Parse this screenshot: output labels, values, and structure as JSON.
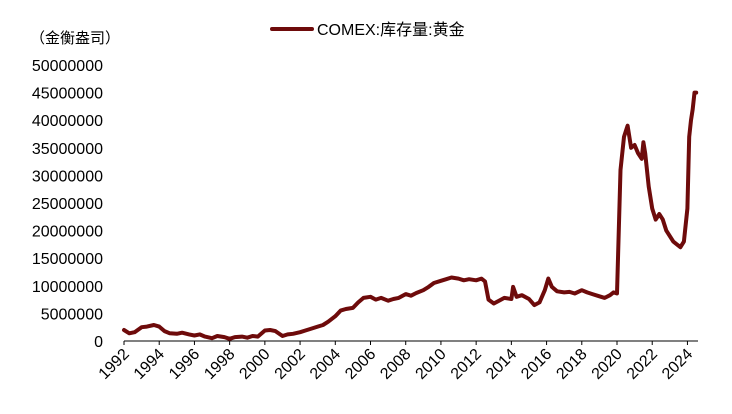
{
  "chart_data": {
    "type": "line",
    "title": "",
    "xlabel": "",
    "ylabel": "（金衡盎司）",
    "xlim": [
      1992,
      2024.6
    ],
    "ylim": [
      0,
      50000000
    ],
    "grid": false,
    "legend_position": "top",
    "y_ticks": [
      "0",
      "5000000",
      "10000000",
      "15000000",
      "20000000",
      "25000000",
      "30000000",
      "35000000",
      "40000000",
      "45000000",
      "50000000"
    ],
    "x_ticks": [
      "1992",
      "1994",
      "1996",
      "1998",
      "2000",
      "2002",
      "2004",
      "2006",
      "2008",
      "2010",
      "2012",
      "2014",
      "2016",
      "2018",
      "2020",
      "2022",
      "2024"
    ],
    "series": [
      {
        "name": "COMEX:库存量:黄金",
        "color": "#6e0b0b",
        "x": [
          1992.0,
          1992.3,
          1992.6,
          1993.0,
          1993.3,
          1993.7,
          1994.0,
          1994.3,
          1994.6,
          1995.0,
          1995.3,
          1995.7,
          1996.0,
          1996.3,
          1996.6,
          1997.0,
          1997.3,
          1997.7,
          1998.0,
          1998.3,
          1998.7,
          1999.0,
          1999.3,
          1999.6,
          2000.0,
          2000.3,
          2000.6,
          2001.0,
          2001.3,
          2001.6,
          2002.0,
          2002.3,
          2002.6,
          2003.0,
          2003.3,
          2003.6,
          2004.0,
          2004.3,
          2004.6,
          2005.0,
          2005.3,
          2005.6,
          2006.0,
          2006.3,
          2006.6,
          2007.0,
          2007.3,
          2007.6,
          2008.0,
          2008.3,
          2008.6,
          2009.0,
          2009.3,
          2009.6,
          2010.0,
          2010.3,
          2010.6,
          2011.0,
          2011.3,
          2011.6,
          2012.0,
          2012.3,
          2012.5,
          2012.7,
          2013.0,
          2013.3,
          2013.6,
          2014.0,
          2014.1,
          2014.3,
          2014.6,
          2015.0,
          2015.3,
          2015.6,
          2015.9,
          2016.1,
          2016.3,
          2016.6,
          2017.0,
          2017.3,
          2017.6,
          2018.0,
          2018.3,
          2018.6,
          2019.0,
          2019.3,
          2019.6,
          2019.8,
          2020.0,
          2020.2,
          2020.4,
          2020.5,
          2020.6,
          2020.8,
          2021.0,
          2021.2,
          2021.4,
          2021.5,
          2021.6,
          2021.8,
          2022.0,
          2022.2,
          2022.4,
          2022.6,
          2022.8,
          2023.0,
          2023.2,
          2023.4,
          2023.6,
          2023.8,
          2024.0,
          2024.1,
          2024.2,
          2024.3,
          2024.4,
          2024.5
        ],
        "y": [
          2000000,
          1400000,
          1600000,
          2500000,
          2600000,
          2900000,
          2600000,
          1800000,
          1400000,
          1300000,
          1500000,
          1200000,
          1000000,
          1200000,
          800000,
          500000,
          900000,
          700000,
          400000,
          700000,
          800000,
          600000,
          900000,
          800000,
          1900000,
          2000000,
          1800000,
          900000,
          1200000,
          1300000,
          1600000,
          1900000,
          2200000,
          2600000,
          2900000,
          3500000,
          4500000,
          5500000,
          5800000,
          6000000,
          7000000,
          7800000,
          8000000,
          7500000,
          7800000,
          7300000,
          7600000,
          7800000,
          8500000,
          8200000,
          8700000,
          9200000,
          9800000,
          10500000,
          10900000,
          11200000,
          11500000,
          11300000,
          11000000,
          11200000,
          11000000,
          11300000,
          10800000,
          7500000,
          6800000,
          7300000,
          7800000,
          7600000,
          9800000,
          8000000,
          8300000,
          7600000,
          6500000,
          7000000,
          9200000,
          11300000,
          9800000,
          9000000,
          8800000,
          8900000,
          8600000,
          9200000,
          8800000,
          8500000,
          8100000,
          7800000,
          8300000,
          8800000,
          8600000,
          31000000,
          37000000,
          38000000,
          39000000,
          35000000,
          35500000,
          34000000,
          33000000,
          36000000,
          34000000,
          28000000,
          24000000,
          22000000,
          23000000,
          22000000,
          20000000,
          19000000,
          18000000,
          17500000,
          17000000,
          18000000,
          24000000,
          37000000,
          40000000,
          42000000,
          45000000,
          45000000
        ]
      }
    ]
  }
}
